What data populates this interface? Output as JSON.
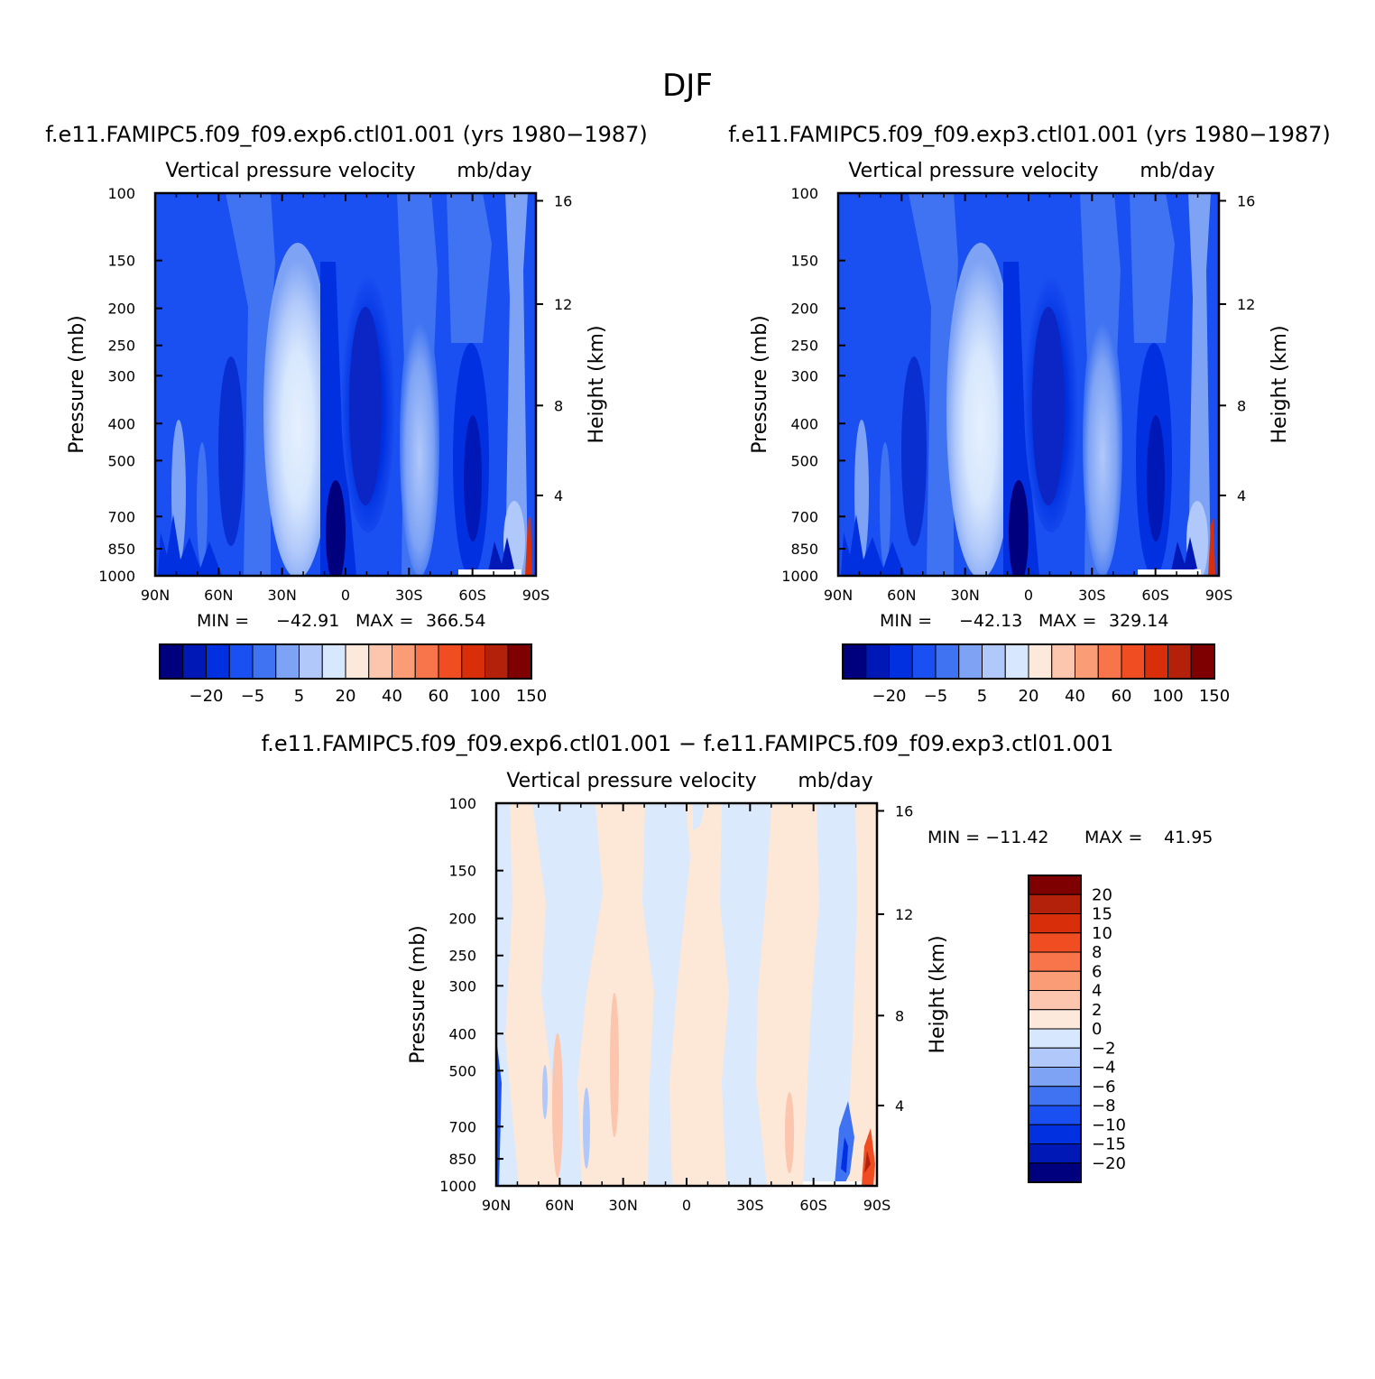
{
  "title": "DJF",
  "chart_data": [
    {
      "type": "heatmap",
      "run_title": "f.e11.FAMIPC5.f09_f09.exp6.ctl01.001 (yrs 1980−1987)",
      "variable": "Vertical pressure velocity",
      "units": "mb/day",
      "xlabel": "",
      "ylabel": "Pressure (mb)",
      "ylabel_right": "Height (km)",
      "x_ticks": [
        "90N",
        "60N",
        "30N",
        "0",
        "30S",
        "60S",
        "90S"
      ],
      "y_ticks": [
        "100",
        "150",
        "200",
        "250",
        "300",
        "400",
        "500",
        "700",
        "850",
        "1000"
      ],
      "y_ticks_right": [
        "16",
        "12",
        "8",
        "4"
      ],
      "y_scale": "log",
      "ylim": [
        1000,
        100
      ],
      "min_label": "MIN =",
      "min": "−42.91",
      "max_label": "MAX =",
      "max": "366.54",
      "colorbar_labels": [
        "−20",
        "−5",
        "5",
        "20",
        "40",
        "60",
        "100",
        "150"
      ],
      "colorbar_orientation": "horizontal"
    },
    {
      "type": "heatmap",
      "run_title": "f.e11.FAMIPC5.f09_f09.exp3.ctl01.001 (yrs 1980−1987)",
      "variable": "Vertical pressure velocity",
      "units": "mb/day",
      "xlabel": "",
      "ylabel": "Pressure (mb)",
      "ylabel_right": "Height (km)",
      "x_ticks": [
        "90N",
        "60N",
        "30N",
        "0",
        "30S",
        "60S",
        "90S"
      ],
      "y_ticks": [
        "100",
        "150",
        "200",
        "250",
        "300",
        "400",
        "500",
        "700",
        "850",
        "1000"
      ],
      "y_ticks_right": [
        "16",
        "12",
        "8",
        "4"
      ],
      "y_scale": "log",
      "ylim": [
        1000,
        100
      ],
      "min_label": "MIN =",
      "min": "−42.13",
      "max_label": "MAX =",
      "max": "329.14",
      "colorbar_labels": [
        "−20",
        "−5",
        "5",
        "20",
        "40",
        "60",
        "100",
        "150"
      ],
      "colorbar_orientation": "horizontal"
    },
    {
      "type": "heatmap",
      "run_title": "f.e11.FAMIPC5.f09_f09.exp6.ctl01.001 − f.e11.FAMIPC5.f09_f09.exp3.ctl01.001",
      "variable": "Vertical pressure velocity",
      "units": "mb/day",
      "xlabel": "",
      "ylabel": "Pressure (mb)",
      "ylabel_right": "Height (km)",
      "x_ticks": [
        "90N",
        "60N",
        "30N",
        "0",
        "30S",
        "60S",
        "90S"
      ],
      "y_ticks": [
        "100",
        "150",
        "200",
        "250",
        "300",
        "400",
        "500",
        "700",
        "850",
        "1000"
      ],
      "y_ticks_right": [
        "16",
        "12",
        "8",
        "4"
      ],
      "y_scale": "log",
      "ylim": [
        1000,
        100
      ],
      "min_label": "MIN = −11.42",
      "min": "−11.42",
      "max_label": "MAX =",
      "max": "41.95",
      "colorbar_labels": [
        "20",
        "15",
        "10",
        "8",
        "6",
        "4",
        "2",
        "0",
        "−2",
        "−4",
        "−6",
        "−8",
        "−10",
        "−15",
        "−20"
      ],
      "colorbar_orientation": "vertical"
    }
  ],
  "colors": {
    "colorbar": [
      "#00007f",
      "#0018b5",
      "#0030e0",
      "#1a4ff2",
      "#3f73f2",
      "#7ea3f5",
      "#b1c9fa",
      "#d7e7fd",
      "#fde9dc",
      "#fcc5ad",
      "#fa9d76",
      "#f8744a",
      "#f04e22",
      "#d82e0a",
      "#b3210a",
      "#7f0000"
    ],
    "diff_pos": "#fde8d8",
    "diff_neg": "#dbe9fc"
  }
}
